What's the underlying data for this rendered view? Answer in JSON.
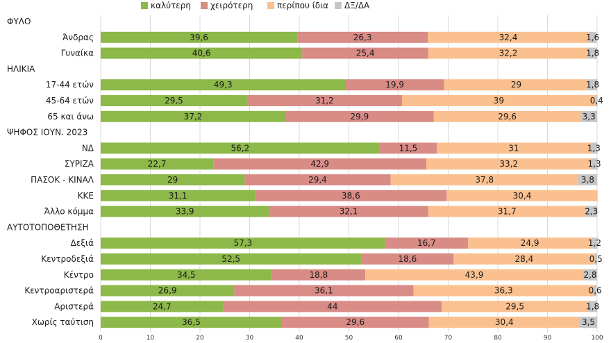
{
  "chart_data": {
    "type": "bar",
    "orientation": "horizontal",
    "stacked": true,
    "title": "",
    "xlabel": "",
    "ylabel": "",
    "xlim": [
      0,
      100
    ],
    "x_ticks": [
      0,
      10,
      20,
      30,
      40,
      50,
      60,
      70,
      80,
      90,
      100
    ],
    "legend_position": "top",
    "grid": true,
    "series": [
      {
        "name": "καλύτερη",
        "color": "#8db84a"
      },
      {
        "name": "χειρότερη",
        "color": "#d98b86"
      },
      {
        "name": "περίπου ίδια",
        "color": "#fac08f"
      },
      {
        "name": "ΔΞ/ΔΑ",
        "color": "#c6c6c6"
      }
    ],
    "rows": [
      {
        "label": "ΦΥΛΟ",
        "header": true
      },
      {
        "label": "Άνδρας",
        "values": [
          39.6,
          26.3,
          32.4,
          1.6
        ],
        "labels": [
          "39,6",
          "26,3",
          "32,4",
          "1,6"
        ]
      },
      {
        "label": "Γυναίκα",
        "values": [
          40.6,
          25.4,
          32.2,
          1.8
        ],
        "labels": [
          "40,6",
          "25,4",
          "32,2",
          "1,8"
        ]
      },
      {
        "label": "ΗΛΙΚΙΑ",
        "header": true
      },
      {
        "label": "17-44 ετών",
        "values": [
          49.3,
          19.9,
          29,
          1.8
        ],
        "labels": [
          "49,3",
          "19,9",
          "29",
          "1,8"
        ]
      },
      {
        "label": "45-64 ετών",
        "values": [
          29.5,
          31.2,
          39,
          0.4
        ],
        "labels": [
          "29,5",
          "31,2",
          "39",
          "0,4"
        ]
      },
      {
        "label": "65 και άνω",
        "values": [
          37.2,
          29.9,
          29.6,
          3.3
        ],
        "labels": [
          "37,2",
          "29,9",
          "29,6",
          "3,3"
        ]
      },
      {
        "label": "ΨΗΦΟΣ ΙΟΥΝ. 2023",
        "header": true
      },
      {
        "label": "ΝΔ",
        "values": [
          56.2,
          11.5,
          31,
          1.3
        ],
        "labels": [
          "56,2",
          "11,5",
          "31",
          "1,3"
        ]
      },
      {
        "label": "ΣΥΡΙΖΑ",
        "values": [
          22.7,
          42.9,
          33.2,
          1.3
        ],
        "labels": [
          "22,7",
          "42,9",
          "33,2",
          "1,3"
        ]
      },
      {
        "label": "ΠΑΣΟΚ - ΚΙΝΑΛ",
        "values": [
          29,
          29.4,
          37.8,
          3.8
        ],
        "labels": [
          "29",
          "29,4",
          "37,8",
          "3,8"
        ]
      },
      {
        "label": "ΚΚΕ",
        "values": [
          31.1,
          38.6,
          30.4,
          0
        ],
        "labels": [
          "31,1",
          "38,6",
          "30,4",
          ""
        ]
      },
      {
        "label": "Άλλο κόμμα",
        "values": [
          33.9,
          32.1,
          31.7,
          2.3
        ],
        "labels": [
          "33,9",
          "32,1",
          "31,7",
          "2,3"
        ]
      },
      {
        "label": "ΑΥΤΟΤΟΠΟΘΕΤΗΣΗ",
        "header": true
      },
      {
        "label": "Δεξιά",
        "values": [
          57.3,
          16.7,
          24.9,
          1.2
        ],
        "labels": [
          "57,3",
          "16,7",
          "24,9",
          "1,2"
        ]
      },
      {
        "label": "Κεντροδεξιά",
        "values": [
          52.5,
          18.6,
          28.4,
          0.5
        ],
        "labels": [
          "52,5",
          "18,6",
          "28,4",
          "0,5"
        ]
      },
      {
        "label": "Κέντρο",
        "values": [
          34.5,
          18.8,
          43.9,
          2.8
        ],
        "labels": [
          "34,5",
          "18,8",
          "43,9",
          "2,8"
        ]
      },
      {
        "label": "Κεντροαριστερά",
        "values": [
          26.9,
          36.1,
          36.3,
          0.6
        ],
        "labels": [
          "26,9",
          "36,1",
          "36,3",
          "0,6"
        ]
      },
      {
        "label": "Αριστερά",
        "values": [
          24.7,
          44,
          29.5,
          1.8
        ],
        "labels": [
          "24,7",
          "44",
          "29,5",
          "1,8"
        ]
      },
      {
        "label": "Χωρίς ταύτιση",
        "values": [
          36.5,
          29.6,
          30.4,
          3.5
        ],
        "labels": [
          "36,5",
          "29,6",
          "30,4",
          "3,5"
        ]
      }
    ]
  }
}
